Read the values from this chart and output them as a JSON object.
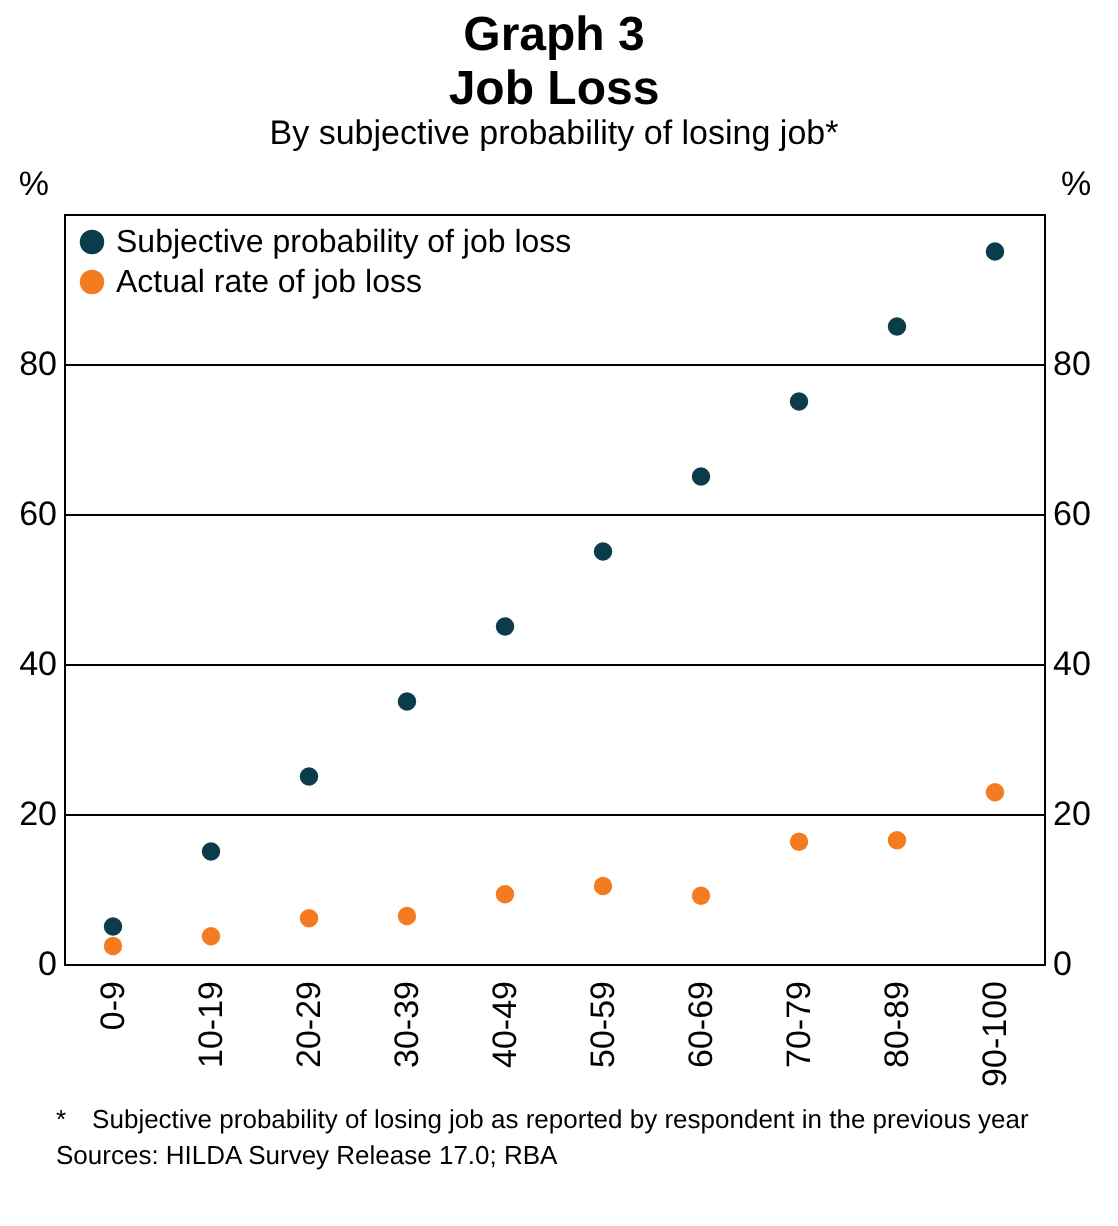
{
  "chart_data": {
    "type": "scatter",
    "title": "Graph 3\nJob Loss",
    "subtitle": "By subjective probability of losing job*",
    "ylabel": "%",
    "y2label": "%",
    "categories": [
      "0-9",
      "10-19",
      "20-29",
      "30-39",
      "40-49",
      "50-59",
      "60-69",
      "70-79",
      "80-89",
      "90-100"
    ],
    "series": [
      {
        "name": "Subjective probability of job loss",
        "color": "#0b3c4c",
        "values": [
          5,
          15,
          25,
          35,
          45,
          55,
          65,
          75,
          85,
          95
        ]
      },
      {
        "name": "Actual rate of job loss",
        "color": "#f47b20",
        "axis": "y2",
        "values": [
          2.4,
          3.7,
          6.1,
          6.4,
          9.3,
          10.4,
          9.1,
          16.3,
          16.5,
          22.9
        ]
      }
    ],
    "ylim": [
      0,
      100
    ],
    "yticks": [
      0,
      20,
      40,
      60,
      80
    ],
    "y2lim": [
      0,
      100
    ],
    "y2ticks": [
      0,
      20,
      40,
      60,
      80
    ],
    "grid": "y",
    "legend": "top left",
    "marker": "circle",
    "annotations": [
      "* Subjective probability of losing job as reported by respondent in the previous year",
      "Sources: HILDA Survey Release 17.0; RBA"
    ]
  }
}
